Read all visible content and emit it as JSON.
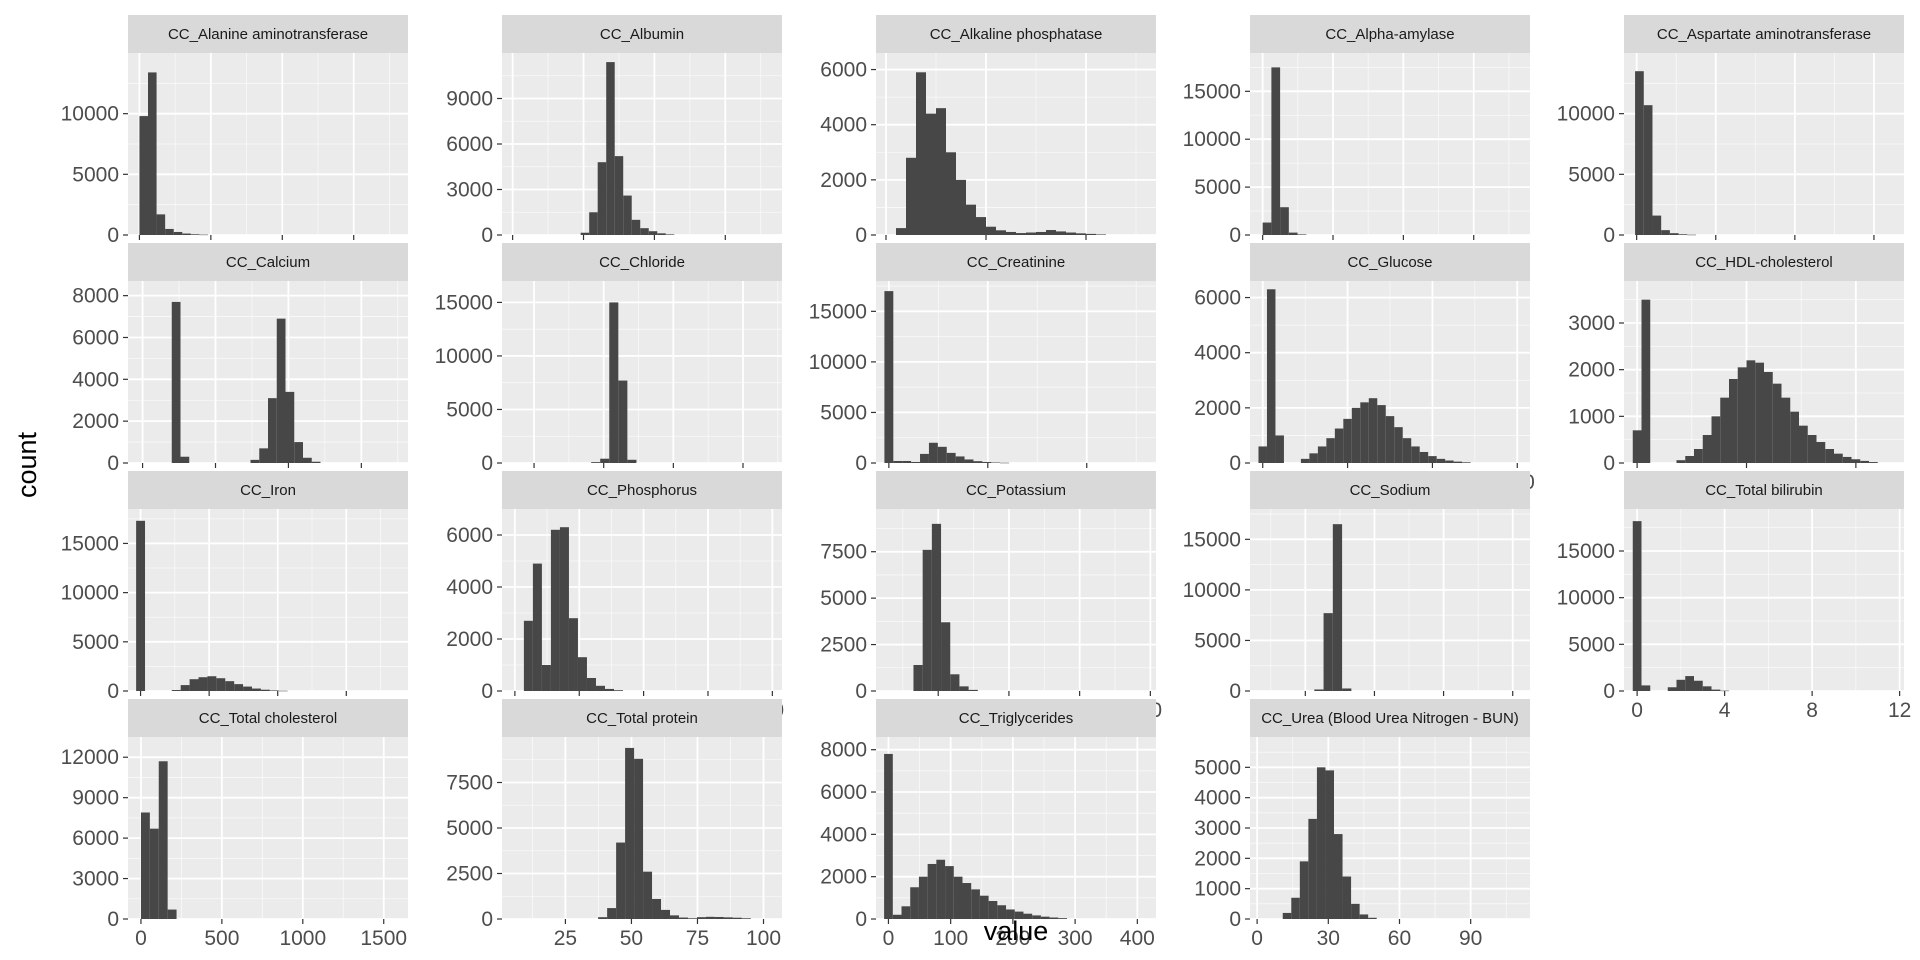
{
  "figure": {
    "xlabel": "value",
    "ylabel": "count",
    "colors": {
      "panel_bg": "#ebebeb",
      "grid_major": "#ffffff",
      "strip_bg": "#d9d9d9",
      "bar_fill": "#474747",
      "tick_text": "#4d4d4d"
    }
  },
  "chart_data": [
    {
      "type": "bar",
      "title": "CC_Alanine aminotransferase",
      "xlim": [
        -80,
        1880
      ],
      "ylim": [
        0,
        15000
      ],
      "xticks": [
        0,
        500,
        1000,
        1500
      ],
      "yticks": [
        0,
        5000,
        10000
      ],
      "bin_width": 60,
      "bins": [
        [
          0,
          9800
        ],
        [
          60,
          13400
        ],
        [
          120,
          1700
        ],
        [
          180,
          500
        ],
        [
          240,
          250
        ],
        [
          300,
          120
        ],
        [
          360,
          60
        ],
        [
          420,
          30
        ]
      ]
    },
    {
      "type": "bar",
      "title": "CC_Albumin",
      "xlim": [
        -3,
        76
      ],
      "ylim": [
        0,
        12000
      ],
      "xticks": [
        0,
        20,
        40,
        60
      ],
      "yticks": [
        0,
        3000,
        6000,
        9000
      ],
      "bin_width": 2.4,
      "bins": [
        [
          19.2,
          150
        ],
        [
          21.6,
          1500
        ],
        [
          24,
          4800
        ],
        [
          26.4,
          11400
        ],
        [
          28.8,
          5200
        ],
        [
          31.2,
          2600
        ],
        [
          33.6,
          1000
        ],
        [
          36,
          450
        ],
        [
          38.4,
          250
        ],
        [
          40.8,
          110
        ],
        [
          43.2,
          40
        ]
      ]
    },
    {
      "type": "bar",
      "title": "CC_Alkaline phosphatase",
      "xlim": [
        -20,
        540
      ],
      "ylim": [
        0,
        6600
      ],
      "xticks": [
        0,
        200,
        400
      ],
      "yticks": [
        0,
        2000,
        4000,
        6000
      ],
      "bin_width": 20,
      "bins": [
        [
          20,
          250
        ],
        [
          40,
          2800
        ],
        [
          60,
          5900
        ],
        [
          80,
          4400
        ],
        [
          100,
          4600
        ],
        [
          120,
          3000
        ],
        [
          140,
          2000
        ],
        [
          160,
          1100
        ],
        [
          180,
          650
        ],
        [
          200,
          300
        ],
        [
          220,
          170
        ],
        [
          240,
          110
        ],
        [
          260,
          70
        ],
        [
          280,
          90
        ],
        [
          300,
          110
        ],
        [
          320,
          180
        ],
        [
          340,
          130
        ],
        [
          360,
          90
        ],
        [
          380,
          60
        ],
        [
          400,
          40
        ],
        [
          420,
          20
        ]
      ]
    },
    {
      "type": "bar",
      "title": "CC_Alpha-amylase",
      "xlim": [
        -450,
        9500
      ],
      "ylim": [
        0,
        19000
      ],
      "xticks": [
        0,
        2500,
        5000,
        7500
      ],
      "yticks": [
        0,
        5000,
        10000,
        15000
      ],
      "bin_width": 310,
      "bins": [
        [
          0,
          1300
        ],
        [
          310,
          17500
        ],
        [
          620,
          2900
        ],
        [
          930,
          250
        ],
        [
          1240,
          60
        ]
      ]
    },
    {
      "type": "bar",
      "title": "CC_Aspartate aminotransferase",
      "xlim": [
        -160,
        3380
      ],
      "ylim": [
        0,
        15000
      ],
      "xticks": [
        0,
        1000,
        2000,
        3000
      ],
      "yticks": [
        0,
        5000,
        10000
      ],
      "bin_width": 110,
      "bins": [
        [
          -20,
          13500
        ],
        [
          90,
          10700
        ],
        [
          200,
          1600
        ],
        [
          310,
          400
        ],
        [
          420,
          150
        ],
        [
          530,
          60
        ],
        [
          640,
          25
        ]
      ]
    },
    {
      "type": "bar",
      "title": "CC_Calcium",
      "xlim": [
        -1,
        18.2
      ],
      "ylim": [
        0,
        8700
      ],
      "xticks": [
        0,
        5,
        10,
        15
      ],
      "yticks": [
        0,
        2000,
        4000,
        6000,
        8000
      ],
      "bin_width": 0.6,
      "bins": [
        [
          2,
          7700
        ],
        [
          2.6,
          300
        ],
        [
          7.4,
          150
        ],
        [
          8,
          700
        ],
        [
          8.6,
          3100
        ],
        [
          9.2,
          6900
        ],
        [
          9.8,
          3400
        ],
        [
          10.4,
          1000
        ],
        [
          11,
          250
        ],
        [
          11.6,
          60
        ]
      ]
    },
    {
      "type": "bar",
      "title": "CC_Chloride",
      "xlim": [
        27,
        228
      ],
      "ylim": [
        0,
        17000
      ],
      "xticks": [
        50,
        100,
        150,
        200
      ],
      "yticks": [
        0,
        5000,
        10000,
        15000
      ],
      "bin_width": 6.5,
      "bins": [
        [
          91,
          80
        ],
        [
          97.5,
          400
        ],
        [
          104,
          15000
        ],
        [
          110.5,
          7700
        ],
        [
          117,
          300
        ]
      ]
    },
    {
      "type": "bar",
      "title": "CC_Creatinine",
      "xlim": [
        -2.6,
        54
      ],
      "ylim": [
        0,
        18000
      ],
      "xticks": [
        0,
        20,
        40
      ],
      "yticks": [
        0,
        5000,
        10000,
        15000
      ],
      "bin_width": 1.8,
      "bins": [
        [
          -0.9,
          17000
        ],
        [
          0.9,
          200
        ],
        [
          2.7,
          200
        ],
        [
          4.5,
          100
        ],
        [
          6.3,
          900
        ],
        [
          8.1,
          2000
        ],
        [
          9.9,
          1600
        ],
        [
          11.7,
          1000
        ],
        [
          13.5,
          650
        ],
        [
          15.3,
          350
        ],
        [
          17.1,
          180
        ],
        [
          18.9,
          100
        ],
        [
          20.7,
          50
        ],
        [
          22.5,
          25
        ]
      ]
    },
    {
      "type": "bar",
      "title": "CC_Glucose",
      "xlim": [
        -30,
        630
      ],
      "ylim": [
        0,
        6600
      ],
      "xticks": [
        0,
        200,
        400,
        600
      ],
      "yticks": [
        0,
        2000,
        4000,
        6000
      ],
      "bin_width": 20,
      "bins": [
        [
          -10,
          600
        ],
        [
          10,
          6300
        ],
        [
          30,
          1000
        ],
        [
          90,
          150
        ],
        [
          110,
          350
        ],
        [
          130,
          600
        ],
        [
          150,
          900
        ],
        [
          170,
          1250
        ],
        [
          190,
          1600
        ],
        [
          210,
          2000
        ],
        [
          230,
          2200
        ],
        [
          250,
          2350
        ],
        [
          270,
          2100
        ],
        [
          290,
          1700
        ],
        [
          310,
          1300
        ],
        [
          330,
          900
        ],
        [
          350,
          600
        ],
        [
          370,
          400
        ],
        [
          390,
          250
        ],
        [
          410,
          150
        ],
        [
          430,
          90
        ],
        [
          450,
          50
        ],
        [
          470,
          25
        ]
      ]
    },
    {
      "type": "bar",
      "title": "CC_HDL-cholesterol",
      "xlim": [
        -6,
        122
      ],
      "ylim": [
        0,
        3900
      ],
      "xticks": [
        0,
        50,
        100
      ],
      "yticks": [
        0,
        1000,
        2000,
        3000
      ],
      "bin_width": 4,
      "bins": [
        [
          -2,
          700
        ],
        [
          2,
          3500
        ],
        [
          18,
          60
        ],
        [
          22,
          150
        ],
        [
          26,
          300
        ],
        [
          30,
          600
        ],
        [
          34,
          1000
        ],
        [
          38,
          1400
        ],
        [
          42,
          1800
        ],
        [
          46,
          2050
        ],
        [
          50,
          2200
        ],
        [
          54,
          2150
        ],
        [
          58,
          1950
        ],
        [
          62,
          1700
        ],
        [
          66,
          1400
        ],
        [
          70,
          1100
        ],
        [
          74,
          800
        ],
        [
          78,
          600
        ],
        [
          82,
          450
        ],
        [
          86,
          300
        ],
        [
          90,
          200
        ],
        [
          94,
          130
        ],
        [
          98,
          80
        ],
        [
          102,
          45
        ],
        [
          106,
          20
        ]
      ]
    },
    {
      "type": "bar",
      "title": "CC_Iron",
      "xlim": [
        -5.5,
        117
      ],
      "ylim": [
        0,
        18500
      ],
      "xticks": [
        0,
        30,
        60,
        90
      ],
      "yticks": [
        0,
        5000,
        10000,
        15000
      ],
      "bin_width": 3.9,
      "bins": [
        [
          -1.95,
          17300
        ],
        [
          13.65,
          100
        ],
        [
          17.55,
          600
        ],
        [
          21.45,
          1200
        ],
        [
          25.35,
          1400
        ],
        [
          29.25,
          1500
        ],
        [
          33.15,
          1300
        ],
        [
          37.05,
          1000
        ],
        [
          40.95,
          700
        ],
        [
          44.85,
          450
        ],
        [
          48.75,
          250
        ],
        [
          52.65,
          130
        ],
        [
          56.55,
          60
        ],
        [
          60.45,
          25
        ]
      ]
    },
    {
      "type": "bar",
      "title": "CC_Phosphorus",
      "xlim": [
        -2,
        41.5
      ],
      "ylim": [
        0,
        7000
      ],
      "xticks": [
        0,
        10,
        20,
        30,
        40
      ],
      "yticks": [
        0,
        2000,
        4000,
        6000
      ],
      "bin_width": 1.4,
      "bins": [
        [
          1.4,
          2700
        ],
        [
          2.8,
          4900
        ],
        [
          4.2,
          1000
        ],
        [
          5.6,
          6200
        ],
        [
          7,
          6300
        ],
        [
          8.4,
          2800
        ],
        [
          9.8,
          1300
        ],
        [
          11.2,
          500
        ],
        [
          12.6,
          200
        ],
        [
          14,
          80
        ],
        [
          15.4,
          30
        ]
      ]
    },
    {
      "type": "bar",
      "title": "CC_Potassium",
      "xlim": [
        0.6,
        20.4
      ],
      "ylim": [
        0,
        9800
      ],
      "xticks": [
        5,
        10,
        15,
        20
      ],
      "yticks": [
        0,
        2500,
        5000,
        7500
      ],
      "bin_width": 0.65,
      "bins": [
        [
          3.25,
          1400
        ],
        [
          3.9,
          7600
        ],
        [
          4.55,
          9000
        ],
        [
          5.2,
          3700
        ],
        [
          5.85,
          900
        ],
        [
          6.5,
          250
        ],
        [
          7.15,
          60
        ]
      ]
    },
    {
      "type": "bar",
      "title": "CC_Sodium",
      "xlim": [
        20,
        425
      ],
      "ylim": [
        0,
        18000
      ],
      "xticks": [
        100,
        200,
        300,
        400
      ],
      "yticks": [
        0,
        5000,
        10000,
        15000
      ],
      "bin_width": 13.4,
      "bins": [
        [
          113,
          150
        ],
        [
          126.4,
          7700
        ],
        [
          139.8,
          16500
        ],
        [
          153.2,
          250
        ]
      ]
    },
    {
      "type": "bar",
      "title": "CC_Total bilirubin",
      "xlim": [
        -0.6,
        12.2
      ],
      "ylim": [
        0,
        19500
      ],
      "xticks": [
        0,
        4,
        8,
        12
      ],
      "yticks": [
        0,
        5000,
        10000,
        15000
      ],
      "bin_width": 0.4,
      "bins": [
        [
          -0.2,
          18200
        ],
        [
          0.2,
          600
        ],
        [
          1.4,
          400
        ],
        [
          1.8,
          1200
        ],
        [
          2.2,
          1600
        ],
        [
          2.6,
          1100
        ],
        [
          3,
          500
        ],
        [
          3.4,
          150
        ],
        [
          3.8,
          40
        ]
      ]
    },
    {
      "type": "bar",
      "title": "CC_Total cholesterol",
      "xlim": [
        -80,
        1650
      ],
      "ylim": [
        0,
        13500
      ],
      "xticks": [
        0,
        500,
        1000,
        1500
      ],
      "yticks": [
        0,
        3000,
        6000,
        9000,
        12000
      ],
      "bin_width": 55,
      "bins": [
        [
          0,
          7900
        ],
        [
          55,
          6700
        ],
        [
          110,
          11700
        ],
        [
          165,
          700
        ]
      ]
    },
    {
      "type": "bar",
      "title": "CC_Total protein",
      "xlim": [
        1,
        107
      ],
      "ylim": [
        0,
        10000
      ],
      "xticks": [
        25,
        50,
        75,
        100
      ],
      "yticks": [
        0,
        2500,
        5000,
        7500
      ],
      "bin_width": 3.4,
      "bins": [
        [
          37.4,
          100
        ],
        [
          40.8,
          600
        ],
        [
          44.2,
          4200
        ],
        [
          47.6,
          9400
        ],
        [
          51,
          8800
        ],
        [
          54.4,
          2600
        ],
        [
          57.8,
          1100
        ],
        [
          61.2,
          500
        ],
        [
          64.6,
          200
        ],
        [
          68,
          80
        ],
        [
          71.4,
          40
        ],
        [
          74.8,
          100
        ],
        [
          78.2,
          120
        ],
        [
          81.6,
          110
        ],
        [
          85,
          90
        ],
        [
          88.4,
          70
        ],
        [
          91.8,
          40
        ]
      ]
    },
    {
      "type": "bar",
      "title": "CC_Triglycerides",
      "xlim": [
        -20,
        430
      ],
      "ylim": [
        0,
        8600
      ],
      "xticks": [
        0,
        100,
        200,
        300,
        400
      ],
      "yticks": [
        0,
        2000,
        4000,
        6000,
        8000
      ],
      "bin_width": 14,
      "bins": [
        [
          -7,
          7800
        ],
        [
          7,
          200
        ],
        [
          21,
          600
        ],
        [
          35,
          1500
        ],
        [
          49,
          2000
        ],
        [
          63,
          2600
        ],
        [
          77,
          2800
        ],
        [
          91,
          2500
        ],
        [
          105,
          2000
        ],
        [
          119,
          1700
        ],
        [
          133,
          1400
        ],
        [
          147,
          1100
        ],
        [
          161,
          850
        ],
        [
          175,
          650
        ],
        [
          189,
          450
        ],
        [
          203,
          350
        ],
        [
          217,
          250
        ],
        [
          231,
          170
        ],
        [
          245,
          110
        ],
        [
          259,
          70
        ],
        [
          273,
          40
        ]
      ]
    },
    {
      "type": "bar",
      "title": "CC_Urea (Blood Urea Nitrogen - BUN)",
      "xlim": [
        -3,
        115
      ],
      "ylim": [
        0,
        6000
      ],
      "xticks": [
        0,
        30,
        60,
        90
      ],
      "yticks": [
        0,
        1000,
        2000,
        3000,
        4000,
        5000
      ],
      "bin_width": 3.6,
      "bins": [
        [
          10.8,
          200
        ],
        [
          14.4,
          700
        ],
        [
          18,
          1900
        ],
        [
          21.6,
          3300
        ],
        [
          25.2,
          5000
        ],
        [
          28.8,
          4900
        ],
        [
          32.4,
          2800
        ],
        [
          36,
          1400
        ],
        [
          39.6,
          500
        ],
        [
          43.2,
          150
        ],
        [
          46.8,
          40
        ]
      ]
    }
  ]
}
